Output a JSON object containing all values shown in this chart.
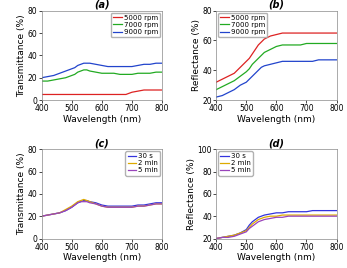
{
  "wavelength": [
    400,
    420,
    440,
    460,
    480,
    500,
    510,
    520,
    530,
    540,
    550,
    560,
    580,
    600,
    620,
    640,
    660,
    680,
    700,
    720,
    740,
    760,
    780,
    800
  ],
  "subplot_a": {
    "title": "(a)",
    "xlabel": "Wavelength (nm)",
    "ylabel": "Transmittance (%)",
    "ylim": [
      0,
      80
    ],
    "yticks": [
      0,
      20,
      40,
      60,
      80
    ],
    "legend_loc": "upper right",
    "legend": [
      "5000 rpm",
      "7000 rpm",
      "9000 rpm"
    ],
    "colors": [
      "#dd2222",
      "#22aa22",
      "#2244cc"
    ],
    "data": {
      "5000rpm": [
        5,
        5,
        5,
        5,
        5,
        5,
        5,
        5,
        5,
        5,
        5,
        5,
        5,
        5,
        5,
        5,
        5,
        5,
        7,
        8,
        9,
        9,
        9,
        9
      ],
      "7000rpm": [
        17,
        17,
        18,
        19,
        20,
        22,
        23,
        25,
        26,
        27,
        27,
        26,
        25,
        24,
        24,
        24,
        23,
        23,
        23,
        24,
        24,
        24,
        25,
        25
      ],
      "9000rpm": [
        20,
        21,
        22,
        24,
        26,
        28,
        29,
        31,
        32,
        33,
        33,
        33,
        32,
        31,
        30,
        30,
        30,
        30,
        30,
        31,
        32,
        32,
        33,
        33
      ]
    }
  },
  "subplot_b": {
    "title": "(b)",
    "xlabel": "Wavelength (nm)",
    "ylabel": "Reflectance (%)",
    "ylim": [
      20,
      80
    ],
    "yticks": [
      20,
      40,
      60,
      80
    ],
    "legend_loc": "upper left",
    "legend": [
      "5000 rpm",
      "7000 rpm",
      "9000 rpm"
    ],
    "colors": [
      "#dd2222",
      "#22aa22",
      "#2244cc"
    ],
    "data": {
      "5000rpm": [
        32,
        34,
        36,
        38,
        42,
        46,
        48,
        51,
        54,
        57,
        59,
        61,
        63,
        64,
        65,
        65,
        65,
        65,
        65,
        65,
        65,
        65,
        65,
        65
      ],
      "7000rpm": [
        27,
        29,
        31,
        33,
        36,
        39,
        41,
        44,
        46,
        48,
        50,
        52,
        54,
        56,
        57,
        57,
        57,
        57,
        58,
        58,
        58,
        58,
        58,
        58
      ],
      "9000rpm": [
        22,
        23,
        25,
        27,
        30,
        32,
        34,
        36,
        38,
        40,
        42,
        43,
        44,
        45,
        46,
        46,
        46,
        46,
        46,
        46,
        47,
        47,
        47,
        47
      ]
    }
  },
  "subplot_c": {
    "title": "(c)",
    "xlabel": "Wavelength (nm)",
    "ylabel": "Transmittance (%)",
    "ylim": [
      0,
      80
    ],
    "yticks": [
      0,
      20,
      40,
      60,
      80
    ],
    "legend_loc": "upper right",
    "legend": [
      "30 s",
      "2 min",
      "5 min"
    ],
    "colors": [
      "#3333dd",
      "#ddaa00",
      "#9944bb"
    ],
    "data": {
      "30s": [
        20,
        21,
        22,
        23,
        25,
        28,
        30,
        32,
        33,
        34,
        34,
        33,
        32,
        30,
        29,
        29,
        29,
        29,
        29,
        30,
        30,
        31,
        32,
        32
      ],
      "2min": [
        20,
        21,
        22,
        23,
        26,
        29,
        31,
        33,
        34,
        35,
        34,
        33,
        31,
        29,
        28,
        28,
        28,
        28,
        28,
        29,
        29,
        30,
        31,
        31
      ],
      "5min": [
        20,
        21,
        22,
        23,
        25,
        28,
        30,
        32,
        33,
        33,
        33,
        32,
        31,
        29,
        28,
        28,
        28,
        28,
        28,
        29,
        29,
        30,
        31,
        31
      ]
    }
  },
  "subplot_d": {
    "title": "(d)",
    "xlabel": "Wavelength (nm)",
    "ylabel": "Reflectance (%)",
    "ylim": [
      20,
      100
    ],
    "yticks": [
      20,
      40,
      60,
      80,
      100
    ],
    "legend_loc": "upper left",
    "legend": [
      "30 s",
      "2 min",
      "5 min"
    ],
    "colors": [
      "#3333dd",
      "#ddaa00",
      "#9944bb"
    ],
    "data": {
      "30s": [
        20,
        21,
        22,
        23,
        25,
        28,
        32,
        35,
        37,
        39,
        40,
        41,
        42,
        43,
        43,
        44,
        44,
        44,
        44,
        45,
        45,
        45,
        45,
        45
      ],
      "2min": [
        20,
        21,
        22,
        23,
        25,
        27,
        30,
        33,
        35,
        37,
        38,
        39,
        40,
        40,
        41,
        41,
        41,
        41,
        41,
        41,
        41,
        41,
        41,
        41
      ],
      "5min": [
        20,
        21,
        21,
        22,
        24,
        26,
        29,
        31,
        33,
        35,
        36,
        37,
        38,
        39,
        39,
        40,
        40,
        40,
        40,
        40,
        40,
        40,
        40,
        40
      ]
    }
  },
  "background_color": "#ffffff",
  "tick_labelsize": 5.5,
  "axis_labelsize": 6.5,
  "legend_fontsize": 5,
  "title_fontsize": 7
}
